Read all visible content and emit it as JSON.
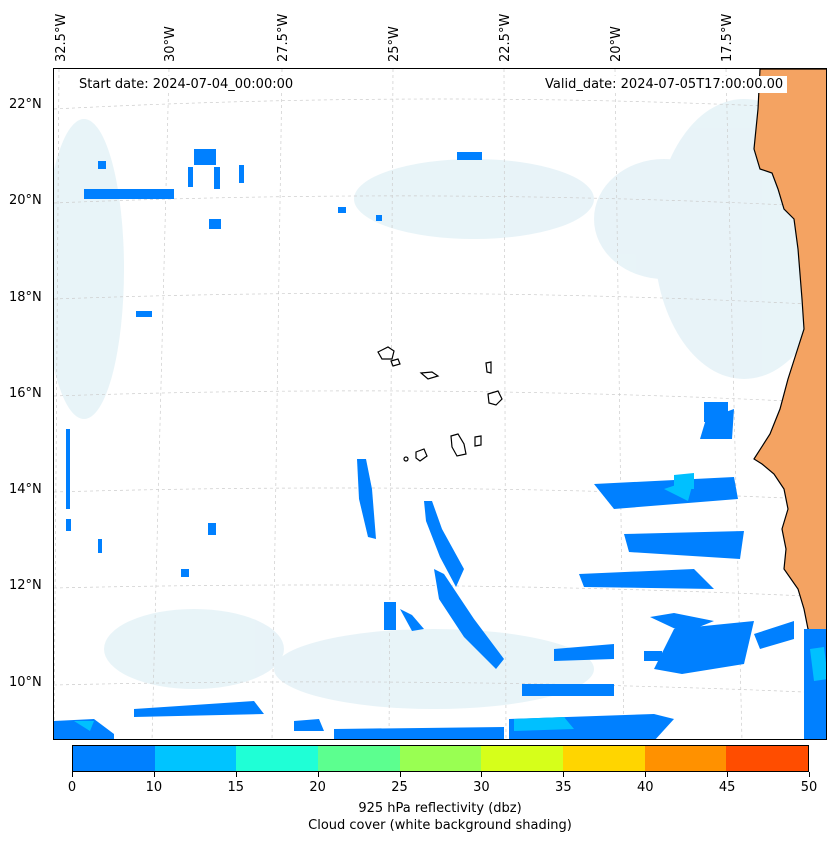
{
  "header": {
    "start_date": "Start date: 2024-07-04_00:00:00",
    "valid_date": "Valid_date: 2024-07-05T17:00:00.00"
  },
  "map": {
    "lon_labels": [
      "32.5°W",
      "30°W",
      "27.5°W",
      "25°W",
      "22.5°W",
      "20°W",
      "17.5°W"
    ],
    "lat_labels": [
      "22°N",
      "20°N",
      "18°N",
      "16°N",
      "14°N",
      "12°N",
      "10°N"
    ],
    "land_color": "#f4a362",
    "reflectivity_color": "#0080ff",
    "reflectivity_light_color": "#00c0ff"
  },
  "colorbar": {
    "ticks": [
      "0",
      "10",
      "15",
      "20",
      "25",
      "30",
      "35",
      "40",
      "45",
      "50"
    ],
    "colors": [
      "#0080ff",
      "#00c4ff",
      "#1fffd6",
      "#5cff8f",
      "#99ff52",
      "#d6ff1a",
      "#ffd500",
      "#ff9100",
      "#ff4d00"
    ],
    "label_line1": "925 hPa reflectivity (dbz)",
    "label_line2": "Cloud cover (white background shading)"
  }
}
